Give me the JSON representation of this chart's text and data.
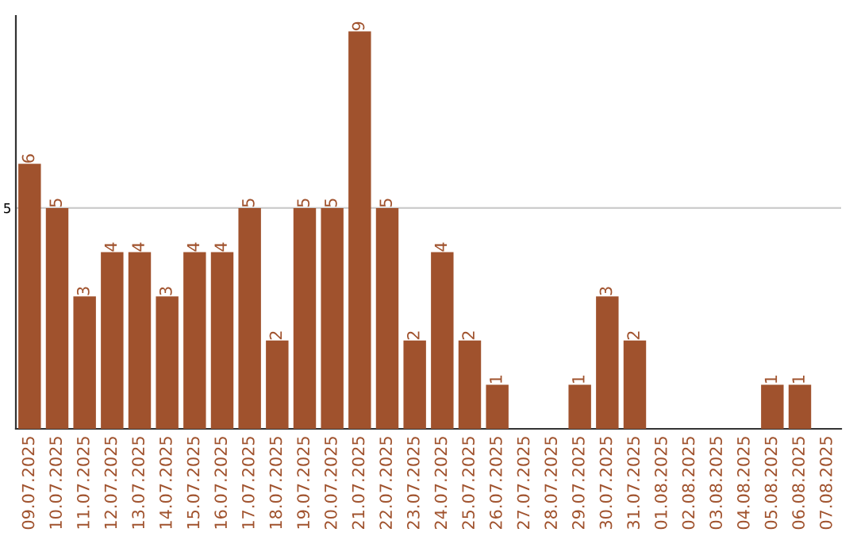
{
  "chart_data": {
    "type": "bar",
    "categories": [
      "09.07.2025",
      "10.07.2025",
      "11.07.2025",
      "12.07.2025",
      "13.07.2025",
      "14.07.2025",
      "15.07.2025",
      "16.07.2025",
      "17.07.2025",
      "18.07.2025",
      "19.07.2025",
      "20.07.2025",
      "21.07.2025",
      "22.07.2025",
      "23.07.2025",
      "24.07.2025",
      "25.07.2025",
      "26.07.2025",
      "27.07.2025",
      "28.07.2025",
      "29.07.2025",
      "30.07.2025",
      "31.07.2025",
      "01.08.2025",
      "02.08.2025",
      "03.08.2025",
      "04.08.2025",
      "05.08.2025",
      "06.08.2025",
      "07.08.2025"
    ],
    "values": [
      6,
      5,
      3,
      4,
      4,
      3,
      4,
      4,
      5,
      2,
      5,
      5,
      9,
      5,
      2,
      4,
      2,
      1,
      0,
      0,
      1,
      3,
      2,
      0,
      0,
      0,
      0,
      1,
      1,
      0
    ],
    "value_labels": [
      "6",
      "5",
      "3",
      "4",
      "4",
      "3",
      "4",
      "4",
      "5",
      "2",
      "5",
      "5",
      "9",
      "5",
      "2",
      "4",
      "2",
      "1",
      null,
      null,
      "1",
      "3",
      "2",
      null,
      null,
      null,
      null,
      "1",
      "1",
      null
    ],
    "color": "#a0522d",
    "ylim": [
      0,
      9.35
    ],
    "yticks": [
      5
    ],
    "grid": "y"
  }
}
